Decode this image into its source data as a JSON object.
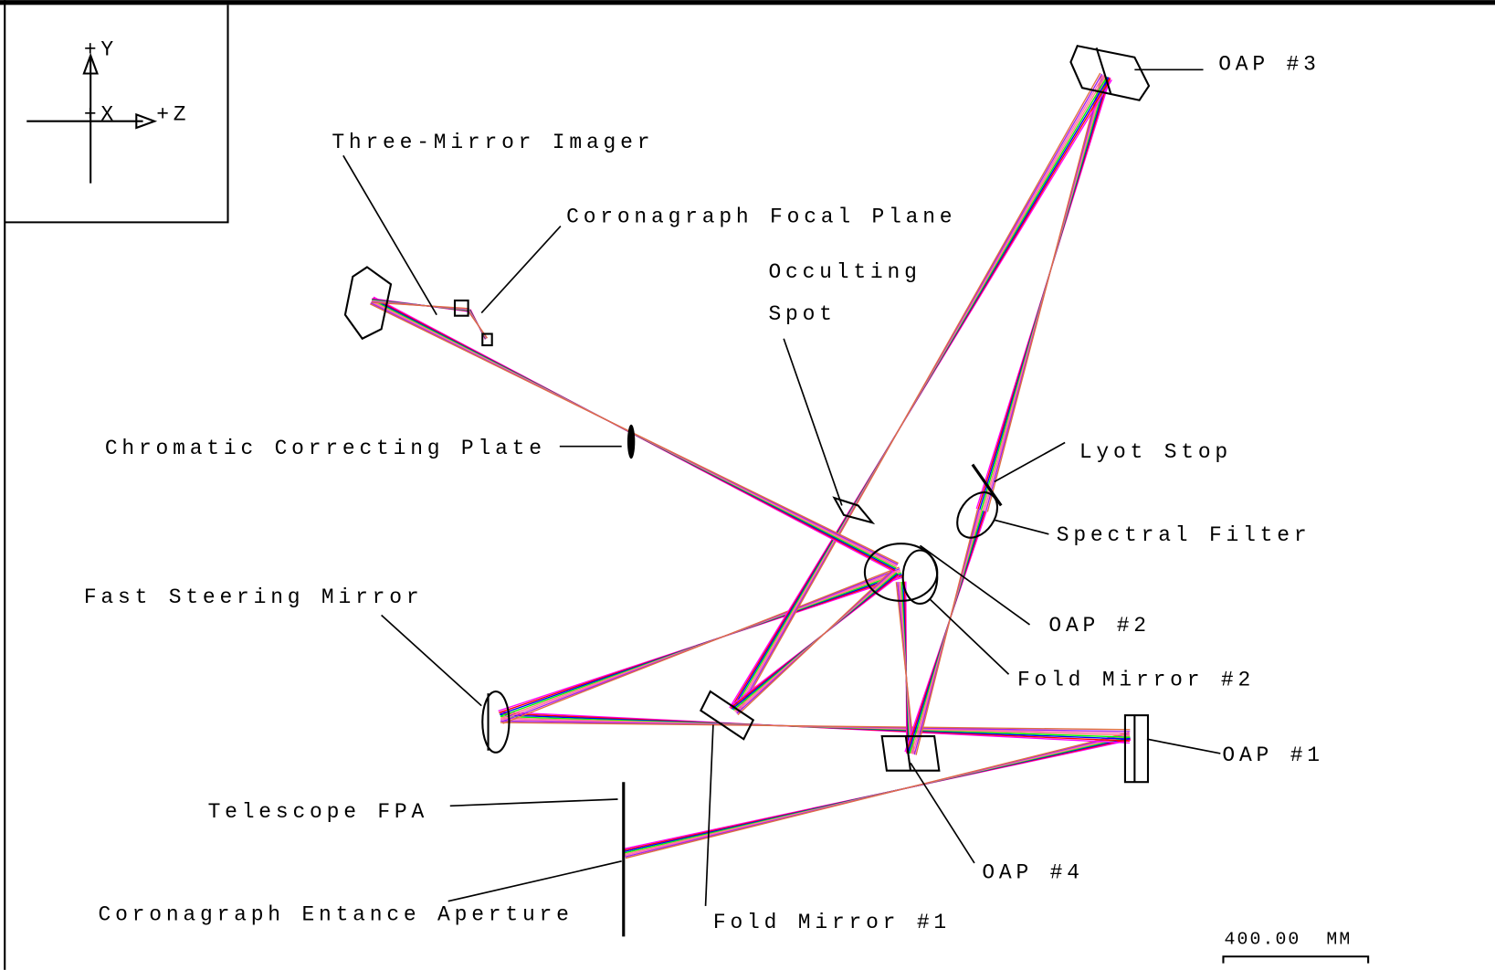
{
  "axes": {
    "y": "+Y",
    "x": "+X",
    "z": "+Z"
  },
  "labels": {
    "oap3": "OAP #3",
    "three_mirror_imager": "Three-Mirror Imager",
    "coronagraph_focal_plane": "Coronagraph Focal Plane",
    "occulting_spot": [
      "Occulting",
      "Spot"
    ],
    "chromatic_correcting_plate": "Chromatic Correcting Plate",
    "lyot_stop": "Lyot Stop",
    "spectral_filter": "Spectral Filter",
    "fast_steering_mirror": "Fast Steering Mirror",
    "oap2": "OAP #2",
    "fold_mirror_2": "Fold Mirror #2",
    "oap1": "OAP #1",
    "telescope_fpa": "Telescope FPA",
    "oap4": "OAP #4",
    "coronagraph_entrance_aperture": "Coronagraph Entance Aperture",
    "fold_mirror_1": "Fold Mirror #1"
  },
  "scale_bar": "400.00  MM"
}
